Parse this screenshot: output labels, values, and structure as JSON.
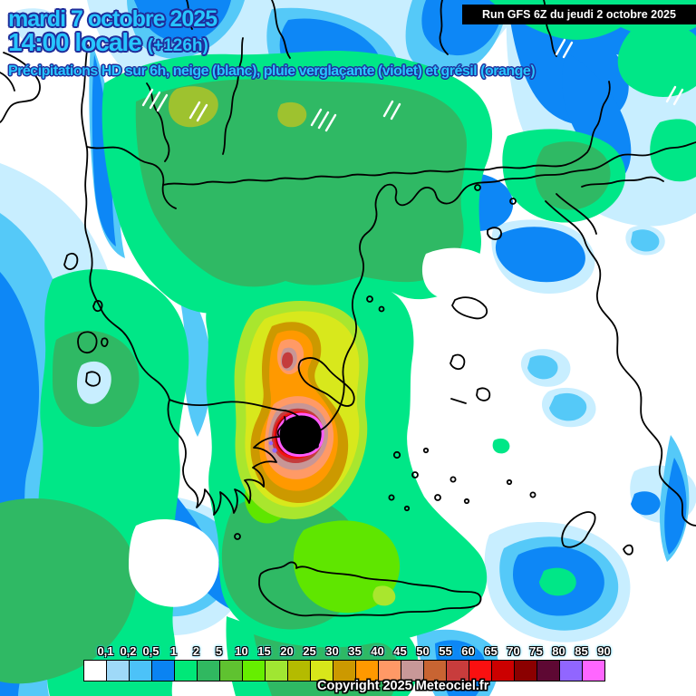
{
  "header": {
    "date_line": "mardi 7 octobre 2025",
    "time_line": "14:00 locale",
    "forecast_offset": "(+126h)",
    "subtitle": "Précipitations HD sur 6h, neige (blanc), pluie verglaçante (violet) et grésil (orange)",
    "text_color": "#27C6FF",
    "outline_color": "#1F2D9B"
  },
  "run_banner": {
    "label": "Run GFS 6Z du jeudi 2 octobre 2025",
    "background": "#000000",
    "text_color": "#FFFFFF"
  },
  "legend": {
    "stops": [
      {
        "label": "0,1",
        "color": "#FFFFFF"
      },
      {
        "label": "0,2",
        "color": "#9FD9F8"
      },
      {
        "label": "0,5",
        "color": "#4CC2F8"
      },
      {
        "label": "1",
        "color": "#0A83F2"
      },
      {
        "label": "2",
        "color": "#00E878"
      },
      {
        "label": "5",
        "color": "#30B860"
      },
      {
        "label": "10",
        "color": "#5FC230"
      },
      {
        "label": "15",
        "color": "#66EE00"
      },
      {
        "label": "20",
        "color": "#A0E632"
      },
      {
        "label": "25",
        "color": "#B4BB00"
      },
      {
        "label": "30",
        "color": "#D8E61A"
      },
      {
        "label": "35",
        "color": "#CC9900"
      },
      {
        "label": "40",
        "color": "#FF9900"
      },
      {
        "label": "45",
        "color": "#FF9966"
      },
      {
        "label": "50",
        "color": "#C89898"
      },
      {
        "label": "55",
        "color": "#C86432"
      },
      {
        "label": "60",
        "color": "#C83C3C"
      },
      {
        "label": "65",
        "color": "#FA1010"
      },
      {
        "label": "70",
        "color": "#CC0000"
      },
      {
        "label": "75",
        "color": "#8B0000"
      },
      {
        "label": "80",
        "color": "#5E0833"
      },
      {
        "label": "85",
        "color": "#9166FF"
      },
      {
        "label": "90",
        "color": "#FF66FF"
      }
    ]
  },
  "footer": {
    "copyright": "Copyright 2025 Meteociel.fr"
  },
  "map_palette": {
    "no_precip": "#FFFFFF",
    "very_light": "#C8EEFF",
    "light_cyan": "#55C9F8",
    "blue": "#0D87F6",
    "green": "#00E787",
    "dark_green": "#2FB964",
    "bright_green": "#5FE600",
    "core_ring_magenta": "#FF5CFF",
    "core_black": "#000000",
    "coastline": "#000000",
    "snow_hatch": "#FFFFFF"
  }
}
